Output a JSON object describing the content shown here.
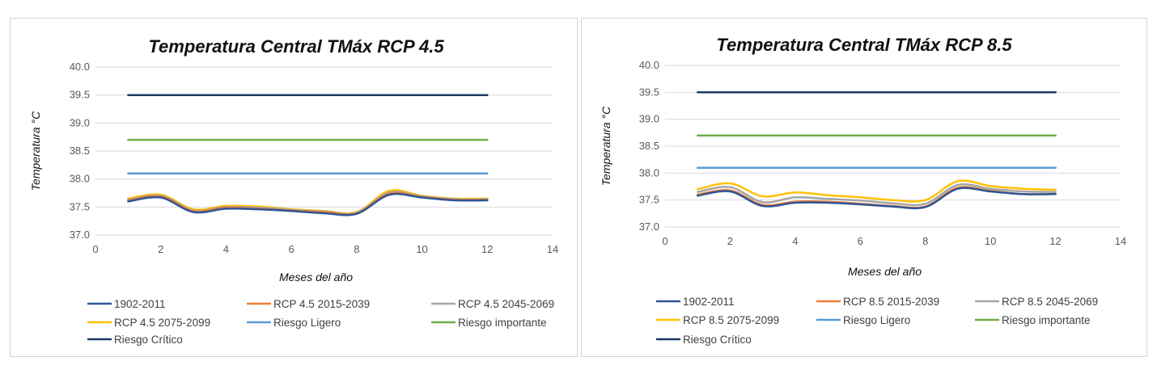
{
  "chart_data": [
    {
      "type": "line",
      "title": "Temperatura Central TMáx RCP 4.5",
      "xlabel": "Meses  del año",
      "ylabel": "Temperatura  °C",
      "xlim": [
        0,
        14
      ],
      "ylim": [
        37.0,
        40.0
      ],
      "x_ticks": [
        "0",
        "2",
        "4",
        "6",
        "8",
        "10",
        "12",
        "14"
      ],
      "y_ticks": [
        "37.0",
        "37.5",
        "38.0",
        "38.5",
        "39.0",
        "39.5",
        "40.0"
      ],
      "grid": true,
      "legend_position": "bottom",
      "x": [
        1,
        2,
        3,
        4,
        5,
        6,
        7,
        8,
        9,
        10,
        11,
        12
      ],
      "series": [
        {
          "name": "1902-2011",
          "color": "#2f5597",
          "values": [
            37.6,
            37.67,
            37.41,
            37.47,
            37.46,
            37.43,
            37.39,
            37.38,
            37.72,
            37.67,
            37.62,
            37.62
          ]
        },
        {
          "name": "RCP 4.5 2015-2039",
          "color": "#ed7d31",
          "values": [
            37.62,
            37.69,
            37.43,
            37.49,
            37.47,
            37.44,
            37.41,
            37.39,
            37.74,
            37.68,
            37.63,
            37.63
          ]
        },
        {
          "name": "RCP 4.5 2045-2069",
          "color": "#a5a5a5",
          "values": [
            37.63,
            37.7,
            37.44,
            37.5,
            37.49,
            37.45,
            37.42,
            37.4,
            37.76,
            37.69,
            37.64,
            37.64
          ]
        },
        {
          "name": "RCP 4.5 2075-2099",
          "color": "#ffc000",
          "values": [
            37.65,
            37.72,
            37.46,
            37.52,
            37.51,
            37.46,
            37.43,
            37.41,
            37.79,
            37.7,
            37.65,
            37.65
          ]
        },
        {
          "name": "Riesgo Ligero",
          "color": "#5b9bd5",
          "values": [
            38.1,
            38.1,
            38.1,
            38.1,
            38.1,
            38.1,
            38.1,
            38.1,
            38.1,
            38.1,
            38.1,
            38.1
          ]
        },
        {
          "name": "Riesgo importante",
          "color": "#70ad47",
          "values": [
            38.7,
            38.7,
            38.7,
            38.7,
            38.7,
            38.7,
            38.7,
            38.7,
            38.7,
            38.7,
            38.7,
            38.7
          ]
        },
        {
          "name": "Riesgo Crítico",
          "color": "#1f3864",
          "values": [
            39.5,
            39.5,
            39.5,
            39.5,
            39.5,
            39.5,
            39.5,
            39.5,
            39.5,
            39.5,
            39.5,
            39.5
          ]
        }
      ]
    },
    {
      "type": "line",
      "title": "Temperatura Central TMáx RCP 8.5",
      "xlabel": "Meses  del año",
      "ylabel": "Temperatura  °C",
      "xlim": [
        0,
        14
      ],
      "ylim": [
        37.0,
        40.0
      ],
      "x_ticks": [
        "0",
        "2",
        "4",
        "6",
        "8",
        "10",
        "12",
        "14"
      ],
      "y_ticks": [
        "37.0",
        "37.5",
        "38.0",
        "38.5",
        "39.0",
        "39.5",
        "40.0"
      ],
      "grid": true,
      "legend_position": "bottom",
      "x": [
        1,
        2,
        3,
        4,
        5,
        6,
        7,
        8,
        9,
        10,
        11,
        12
      ],
      "series": [
        {
          "name": "1902-2011",
          "color": "#2f5597",
          "values": [
            37.58,
            37.66,
            37.39,
            37.45,
            37.45,
            37.42,
            37.38,
            37.37,
            37.71,
            37.66,
            37.61,
            37.61
          ]
        },
        {
          "name": "RCP 8.5 2015-2039",
          "color": "#ed7d31",
          "values": [
            37.6,
            37.68,
            37.41,
            37.47,
            37.47,
            37.43,
            37.39,
            37.38,
            37.73,
            37.67,
            37.61,
            37.61
          ]
        },
        {
          "name": "RCP 8.5 2045-2069",
          "color": "#a5a5a5",
          "values": [
            37.65,
            37.74,
            37.46,
            37.55,
            37.52,
            37.49,
            37.44,
            37.43,
            37.78,
            37.71,
            37.66,
            37.65
          ]
        },
        {
          "name": "RCP 8.5 2075-2099",
          "color": "#ffc000",
          "values": [
            37.7,
            37.81,
            37.57,
            37.64,
            37.59,
            37.55,
            37.5,
            37.5,
            37.85,
            37.76,
            37.71,
            37.69
          ]
        },
        {
          "name": "Riesgo Ligero",
          "color": "#5b9bd5",
          "values": [
            38.1,
            38.1,
            38.1,
            38.1,
            38.1,
            38.1,
            38.1,
            38.1,
            38.1,
            38.1,
            38.1,
            38.1
          ]
        },
        {
          "name": "Riesgo importante",
          "color": "#70ad47",
          "values": [
            38.7,
            38.7,
            38.7,
            38.7,
            38.7,
            38.7,
            38.7,
            38.7,
            38.7,
            38.7,
            38.7,
            38.7
          ]
        },
        {
          "name": "Riesgo Crítico",
          "color": "#1f3864",
          "values": [
            39.5,
            39.5,
            39.5,
            39.5,
            39.5,
            39.5,
            39.5,
            39.5,
            39.5,
            39.5,
            39.5,
            39.5
          ]
        }
      ]
    }
  ]
}
